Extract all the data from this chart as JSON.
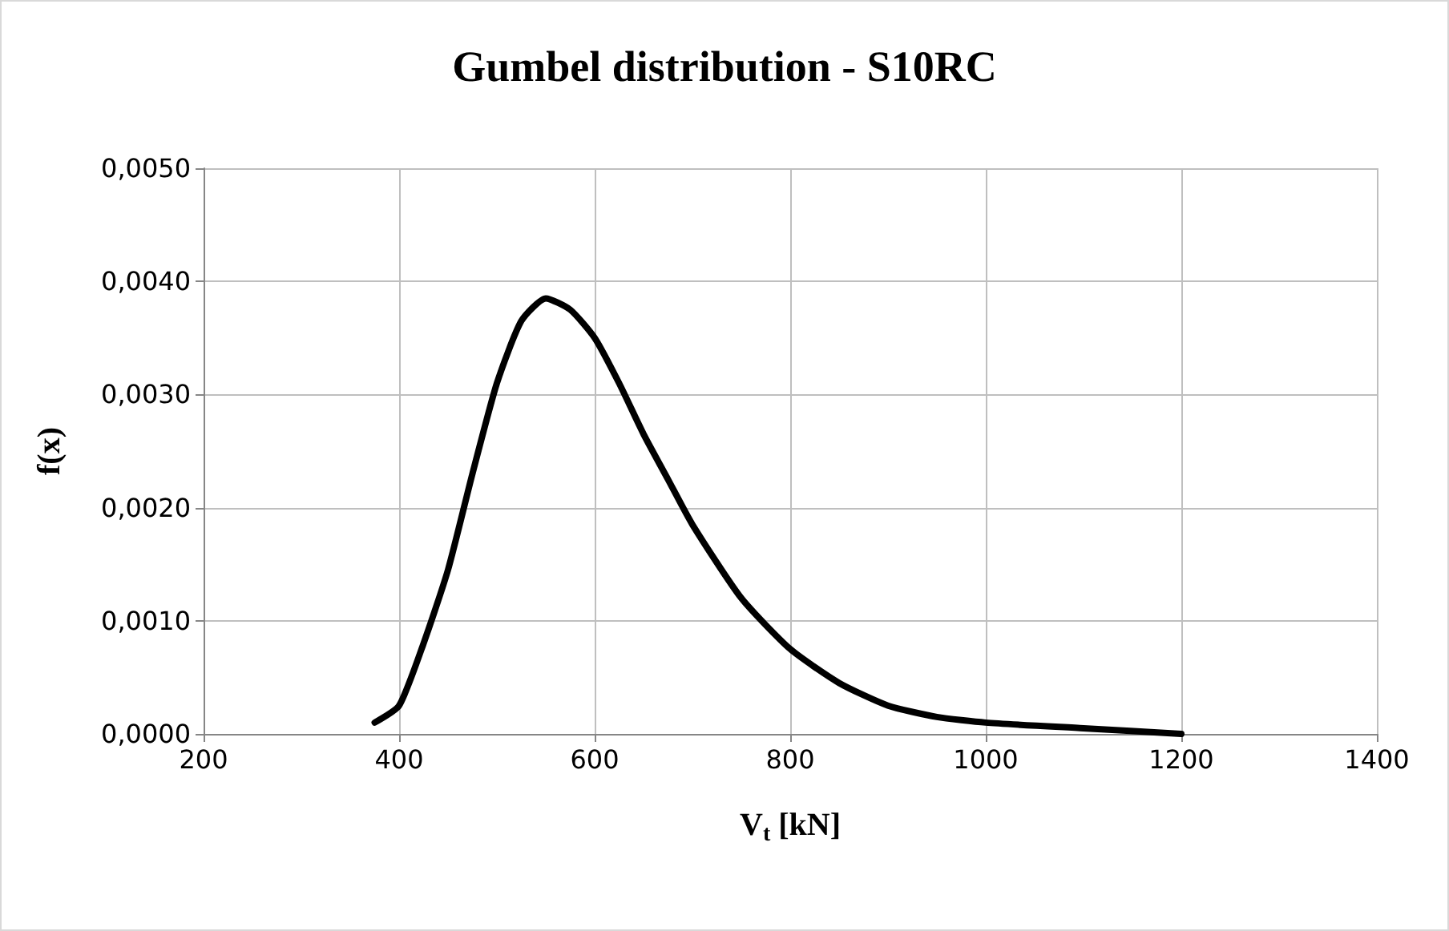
{
  "chart_data": {
    "type": "line",
    "title": "Gumbel distribution - S10RC",
    "xlabel": "V$_{t}$ [kN]",
    "ylabel": "f(x)",
    "x": [
      375,
      400,
      425,
      450,
      475,
      500,
      525,
      550,
      575,
      600,
      625,
      650,
      675,
      700,
      750,
      800,
      850,
      900,
      950,
      1000,
      1100,
      1200
    ],
    "series": [
      {
        "color": "#000000",
        "values": [
          0.0001,
          0.00025,
          0.0008,
          0.00145,
          0.0023,
          0.0031,
          0.00365,
          0.00385,
          0.00375,
          0.0035,
          0.0031,
          0.00265,
          0.00225,
          0.00185,
          0.0012,
          0.00075,
          0.00045,
          0.00025,
          0.00015,
          0.0001,
          5e-05,
          0
        ]
      }
    ],
    "xlim": [
      200,
      1400
    ],
    "xticks": [
      200,
      400,
      600,
      800,
      1000,
      1200,
      1400
    ],
    "ylim": [
      0,
      0.005
    ],
    "yticks": [
      {
        "value": 0,
        "label": "0,0000"
      },
      {
        "value": 0.001,
        "label": "0,0010"
      },
      {
        "value": 0.002,
        "label": "0,0020"
      },
      {
        "value": 0.003,
        "label": "0,0030"
      },
      {
        "value": 0.004,
        "label": "0,0040"
      },
      {
        "value": 0.005,
        "label": "0,0050"
      }
    ],
    "grid": true,
    "marker": "none",
    "line_style": "solid"
  }
}
